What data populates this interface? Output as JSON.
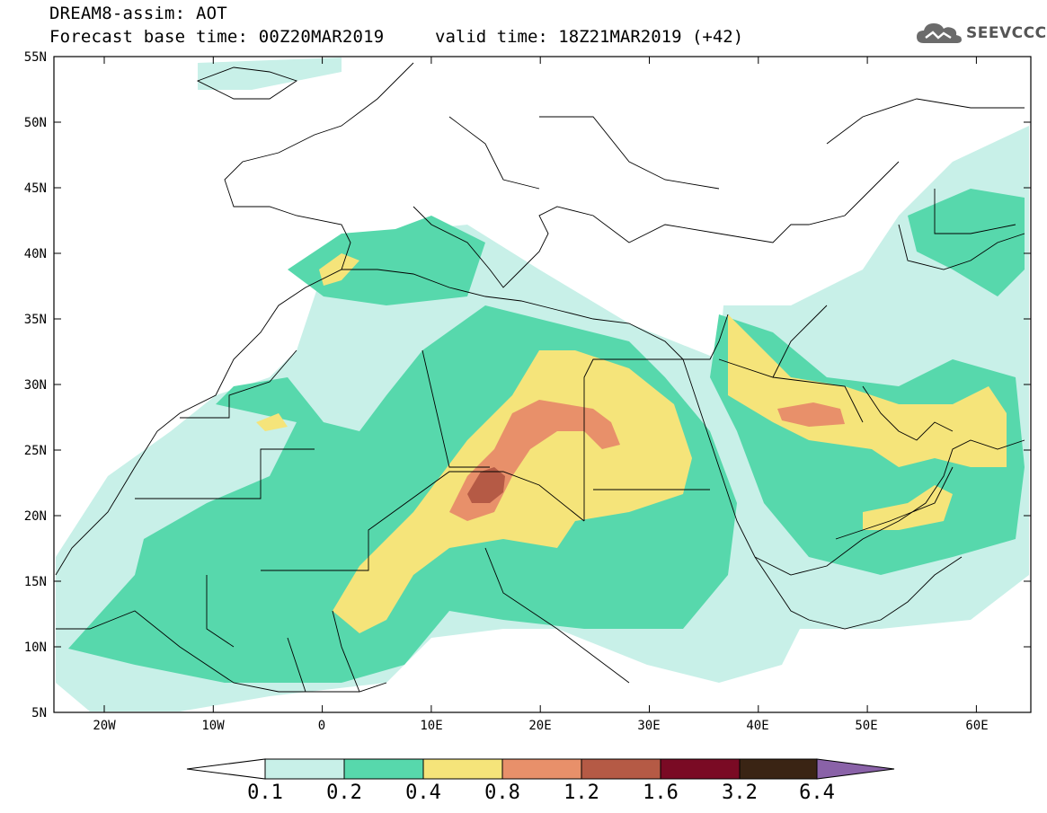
{
  "title": {
    "line1": "DREAM8-assim: AOT",
    "line2": "Forecast base time: 00Z20MAR2019",
    "valid": "valid time: 18Z21MAR2019 (+42)"
  },
  "logo": {
    "icon": "cloud-icon",
    "text": "SEEVCCC"
  },
  "axes": {
    "lat_ticks": [
      "55N",
      "50N",
      "45N",
      "40N",
      "35N",
      "30N",
      "25N",
      "20N",
      "15N",
      "10N",
      "5N"
    ],
    "lon_ticks": [
      "20W",
      "10W",
      "0",
      "10E",
      "20E",
      "30E",
      "40E",
      "50E",
      "60E"
    ],
    "lon_range": [
      -25,
      65
    ],
    "lat_range": [
      5,
      55
    ]
  },
  "colorbar": {
    "levels": [
      "0.1",
      "0.2",
      "0.4",
      "0.8",
      "1.2",
      "1.6",
      "3.2",
      "6.4"
    ],
    "colors": [
      "#c8f0e8",
      "#57d8ac",
      "#f5e47a",
      "#e8906a",
      "#b55a45",
      "#7a0a24",
      "#3a2414",
      "#8a62a8"
    ],
    "under_color": "#ffffff"
  },
  "colors": {
    "background": "#ffffff",
    "borders": "#000000"
  }
}
